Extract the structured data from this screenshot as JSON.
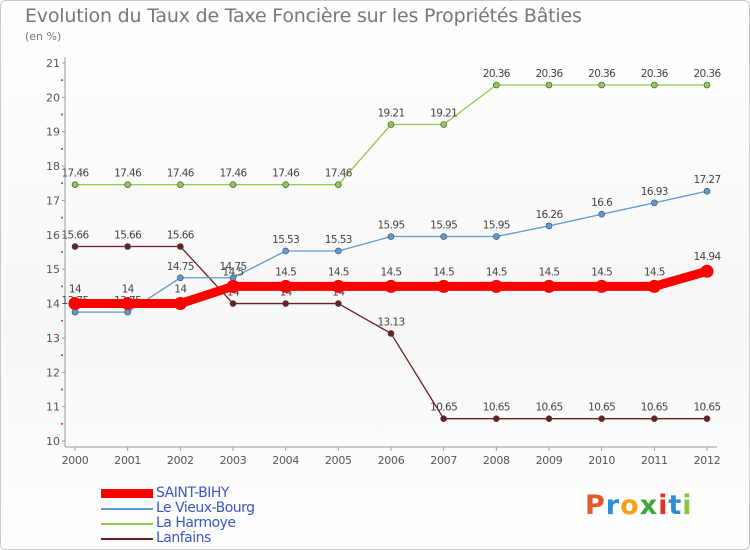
{
  "header": {
    "title": "Evolution du Taux de Taxe Foncière sur les Propriétés Bâties",
    "subtitle": "(en %)"
  },
  "logo": {
    "text": "Proxiti",
    "letters": [
      {
        "ch": "P",
        "color": "#e05a2b"
      },
      {
        "ch": "r",
        "color": "#2b8fd6"
      },
      {
        "ch": "o",
        "color": "#f0a21b"
      },
      {
        "ch": "x",
        "color": "#3aa83a"
      },
      {
        "ch": "i",
        "color": "#e0312b"
      },
      {
        "ch": "t",
        "color": "#2b8fd6"
      },
      {
        "ch": "i",
        "color": "#8cc63f"
      }
    ]
  },
  "chart_data": {
    "type": "line",
    "title": "Evolution du Taux de Taxe Foncière sur les Propriétés Bâties",
    "ylabel": "(en %)",
    "xlabel": "",
    "ylim": [
      10,
      21
    ],
    "yticks": [
      10,
      11,
      12,
      13,
      14,
      15,
      16,
      17,
      18,
      19,
      20,
      21
    ],
    "grid": false,
    "legend_position": "bottom-left",
    "x": [
      "2000",
      "2001",
      "2002",
      "2003",
      "2004",
      "2005",
      "2006",
      "2007",
      "2008",
      "2009",
      "2010",
      "2011",
      "2012"
    ],
    "series": [
      {
        "name": "Lanfains",
        "color": "#6b1f1f",
        "values": [
          15.66,
          15.66,
          15.66,
          14,
          14,
          14,
          13.13,
          10.65,
          10.65,
          10.65,
          10.65,
          10.65,
          10.65
        ],
        "labels": [
          "15.66",
          "15.66",
          "15.66",
          "14",
          "14",
          "14",
          "13.13",
          "10.65",
          "10.65",
          "10.65",
          "10.65",
          "10.65",
          "10.65"
        ]
      },
      {
        "name": "Le Vieux-Bourg",
        "color": "#5a9bd4",
        "values": [
          13.75,
          13.75,
          14.75,
          14.75,
          15.53,
          15.53,
          15.95,
          15.95,
          15.95,
          16.26,
          16.6,
          16.93,
          17.27
        ],
        "labels": [
          "13.75",
          "13.75",
          "14.75",
          "14.75",
          "15.53",
          "15.53",
          "15.95",
          "15.95",
          "15.95",
          "16.26",
          "16.6",
          "16.93",
          "17.27"
        ]
      },
      {
        "name": "La Harmoye",
        "color": "#8ccc4a",
        "values": [
          17.46,
          17.46,
          17.46,
          17.46,
          17.46,
          17.46,
          19.21,
          19.21,
          20.36,
          20.36,
          20.36,
          20.36,
          20.36
        ],
        "labels": [
          "17.46",
          "17.46",
          "17.46",
          "17.46",
          "17.46",
          "17.46",
          "19.21",
          "19.21",
          "20.36",
          "20.36",
          "20.36",
          "20.36",
          "20.36"
        ]
      },
      {
        "name": "SAINT-BIHY",
        "color": "#ff0000",
        "values": [
          14,
          14,
          14,
          14.5,
          14.5,
          14.5,
          14.5,
          14.5,
          14.5,
          14.5,
          14.5,
          14.5,
          14.94
        ],
        "labels": [
          "14",
          "14",
          "14",
          "14.5",
          "14.5",
          "14.5",
          "14.5",
          "14.5",
          "14.5",
          "14.5",
          "14.5",
          "14.5",
          "14.94"
        ]
      }
    ],
    "legend": [
      "SAINT-BIHY",
      "Le Vieux-Bourg",
      "La Harmoye",
      "Lanfains"
    ]
  }
}
